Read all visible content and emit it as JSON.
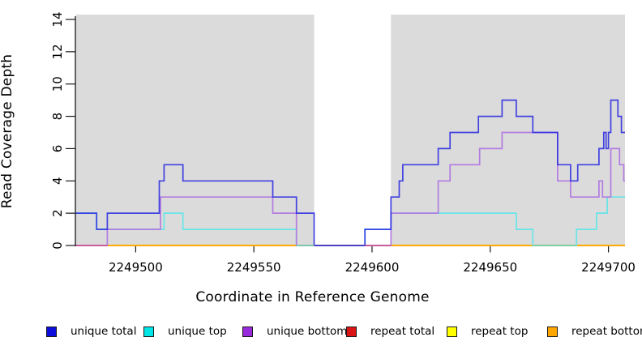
{
  "chart_data": {
    "type": "line",
    "subtype": "step-coverage",
    "title": "",
    "xlabel": "Coordinate in Reference Genome",
    "ylabel": "Read Coverage Depth",
    "xlim": [
      2249474.5,
      2249707
    ],
    "ylim": [
      0,
      14
    ],
    "grid": false,
    "plot_bg": "#DBDBDB",
    "page_bg": "#FFFFFF",
    "x_ticks": [
      {
        "value": 2249500,
        "label": "2249500"
      },
      {
        "value": 2249550,
        "label": "2249550"
      },
      {
        "value": 2249600,
        "label": "2249600"
      },
      {
        "value": 2249650,
        "label": "2249650"
      },
      {
        "value": 2249700,
        "label": "2249700"
      }
    ],
    "y_ticks": [
      {
        "value": 0,
        "label": "0"
      },
      {
        "value": 2,
        "label": "2"
      },
      {
        "value": 4,
        "label": "4"
      },
      {
        "value": 6,
        "label": "6"
      },
      {
        "value": 8,
        "label": "8"
      },
      {
        "value": 10,
        "label": "10"
      },
      {
        "value": 12,
        "label": "12"
      },
      {
        "value": 14,
        "label": "14"
      }
    ],
    "highlight_band": {
      "from": 2249575.5,
      "to": 2249608,
      "color": "#FFFFFF"
    },
    "series": [
      {
        "name": "repeat total",
        "color": "#DC1414",
        "opacity": 1,
        "points": [
          [
            2249474.5,
            0
          ]
        ]
      },
      {
        "name": "repeat top",
        "color": "#FFFF00",
        "opacity": 1,
        "points": [
          [
            2249474.5,
            0
          ]
        ]
      },
      {
        "name": "repeat bottom",
        "color": "#FFA500",
        "opacity": 1,
        "points": [
          [
            2249474.5,
            0
          ]
        ]
      },
      {
        "name": "unique top",
        "color": "#62E6E8",
        "opacity": 0.95,
        "points": [
          [
            2249474.5,
            2
          ],
          [
            2249483.5,
            1
          ],
          [
            2249512,
            2
          ],
          [
            2249520,
            1
          ],
          [
            2249568,
            0
          ],
          [
            2249597,
            1
          ],
          [
            2249608,
            2
          ],
          [
            2249661,
            1
          ],
          [
            2249668,
            0
          ],
          [
            2249686.5,
            1
          ],
          [
            2249695,
            2
          ],
          [
            2249699.5,
            3
          ]
        ]
      },
      {
        "name": "unique bottom",
        "color": "#B177E0",
        "opacity": 0.95,
        "points": [
          [
            2249474.5,
            0
          ],
          [
            2249488,
            1
          ],
          [
            2249510.5,
            3
          ],
          [
            2249558,
            2
          ],
          [
            2249568,
            0
          ],
          [
            2249608,
            2
          ],
          [
            2249628,
            4
          ],
          [
            2249633,
            5
          ],
          [
            2249645.5,
            6
          ],
          [
            2249655,
            7
          ],
          [
            2249678.5,
            4
          ],
          [
            2249684,
            3
          ],
          [
            2249696,
            4
          ],
          [
            2249697.5,
            3
          ],
          [
            2249701,
            6
          ],
          [
            2249704.7,
            5
          ],
          [
            2249706.5,
            4
          ]
        ]
      },
      {
        "name": "unique total",
        "color": "#2B2BE0",
        "opacity": 0.88,
        "points": [
          [
            2249474.5,
            2
          ],
          [
            2249483.5,
            1
          ],
          [
            2249488,
            2
          ],
          [
            2249510,
            4
          ],
          [
            2249512,
            5
          ],
          [
            2249520,
            4
          ],
          [
            2249558,
            3
          ],
          [
            2249568,
            2
          ],
          [
            2249575.5,
            0
          ],
          [
            2249597,
            1
          ],
          [
            2249608,
            3
          ],
          [
            2249611.5,
            4
          ],
          [
            2249613,
            5
          ],
          [
            2249628,
            6
          ],
          [
            2249633,
            7
          ],
          [
            2249645,
            8
          ],
          [
            2249655,
            9
          ],
          [
            2249661,
            8
          ],
          [
            2249668,
            7
          ],
          [
            2249678.5,
            5
          ],
          [
            2249684,
            4
          ],
          [
            2249687,
            5
          ],
          [
            2249696,
            6
          ],
          [
            2249698,
            7
          ],
          [
            2249699,
            6
          ],
          [
            2249700,
            7
          ],
          [
            2249701,
            9
          ],
          [
            2249704,
            8
          ],
          [
            2249705.5,
            7
          ]
        ]
      }
    ],
    "baseline_overlays": [
      {
        "from": 2249474.5,
        "to": 2249488,
        "color": "#C9559B",
        "meaning": "unique bottom over repeat lines at 0"
      },
      {
        "from": 2249568,
        "to": 2249575.5,
        "color": "#7BCDA4",
        "meaning": "unique top over repeat lines at 0"
      },
      {
        "from": 2249575.5,
        "to": 2249597,
        "color": "#4A3FC2",
        "meaning": "unique total over all lines at 0"
      },
      {
        "from": 2249597,
        "to": 2249608,
        "color": "#C9559B",
        "meaning": "unique bottom over repeat lines at 0"
      },
      {
        "from": 2249668,
        "to": 2249686.5,
        "color": "#7BCDA4",
        "meaning": "unique top over repeat lines at 0"
      }
    ]
  },
  "legend": {
    "items": [
      {
        "label": "unique total",
        "fill": "#0D0DDC"
      },
      {
        "label": "unique top",
        "fill": "#00E6E6"
      },
      {
        "label": "unique bottom",
        "fill": "#992ADB"
      },
      {
        "label": "repeat total",
        "fill": "#DC1414"
      },
      {
        "label": "repeat top",
        "fill": "#FFFF00"
      },
      {
        "label": "repeat bottom",
        "fill": "#FFA500"
      }
    ]
  }
}
